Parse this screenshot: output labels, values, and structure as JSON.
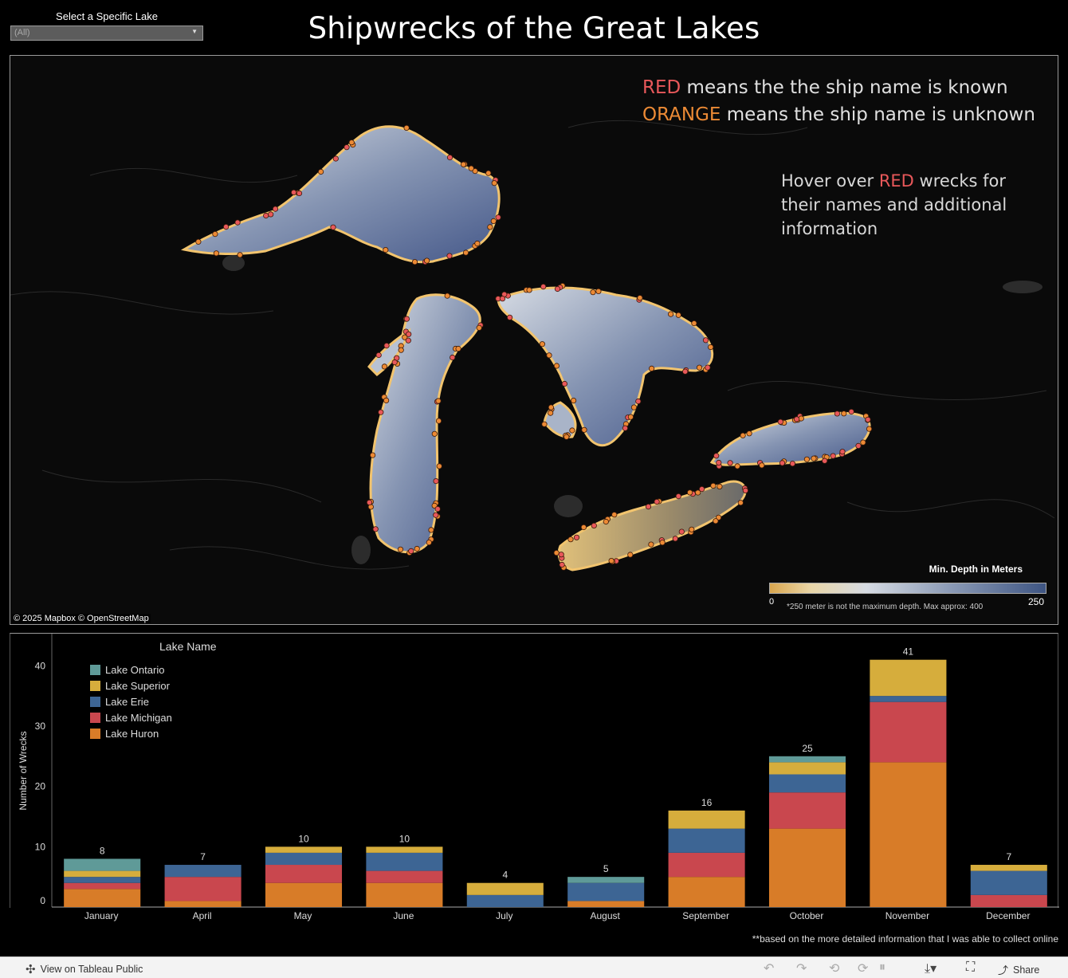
{
  "filter": {
    "label": "Select a Specific Lake",
    "value": "(All)"
  },
  "title": "Shipwrecks of the Great Lakes",
  "map": {
    "legend_red_keyword": "RED",
    "legend_red_text": " means the the ship name is known",
    "legend_orange_keyword": "ORANGE",
    "legend_orange_text": " means the ship name is unknown",
    "hover_prefix": "Hover over ",
    "hover_keyword": "RED",
    "hover_suffix": " wrecks for their names and additional information",
    "attribution": "© 2025 Mapbox  © OpenStreetMap",
    "depth_legend_title": "Min. Depth in Meters",
    "depth_min": "0",
    "depth_max": "250",
    "depth_note": "*250 meter is not the maximum depth. Max approx: 400",
    "colors": {
      "known": "#e8585a",
      "unknown": "#ec8a35",
      "shore": "#f2c46e",
      "deep": "#3e5583"
    }
  },
  "chart_data": {
    "type": "bar",
    "ylabel": "Number of Wrecks",
    "ylim": [
      0,
      44
    ],
    "yticks": [
      "0",
      "10",
      "20",
      "30",
      "40"
    ],
    "categories": [
      "January",
      "April",
      "May",
      "June",
      "July",
      "August",
      "September",
      "October",
      "November",
      "December"
    ],
    "totals": [
      "8",
      "7",
      "10",
      "10",
      "4",
      "5",
      "16",
      "25",
      "41",
      "7"
    ],
    "series": [
      {
        "name": "Lake Huron",
        "color": "#d87c28",
        "values": [
          3,
          1,
          4,
          4,
          0,
          1,
          5,
          13,
          24,
          0
        ]
      },
      {
        "name": "Lake Michigan",
        "color": "#c9474e",
        "values": [
          1,
          4,
          3,
          2,
          0,
          0,
          4,
          6,
          10,
          2
        ]
      },
      {
        "name": "Lake Erie",
        "color": "#3d6594",
        "values": [
          1,
          2,
          2,
          3,
          2,
          3,
          4,
          3,
          1,
          4
        ]
      },
      {
        "name": "Lake Superior",
        "color": "#d6ad3c",
        "values": [
          1,
          0,
          1,
          1,
          2,
          0,
          3,
          2,
          6,
          1
        ]
      },
      {
        "name": "Lake Ontario",
        "color": "#5f9a98",
        "values": [
          2,
          0,
          0,
          0,
          0,
          1,
          0,
          1,
          0,
          0
        ]
      }
    ],
    "legend_title": "Lake Name",
    "legend_order": [
      "Lake Ontario",
      "Lake Superior",
      "Lake Erie",
      "Lake Michigan",
      "Lake Huron"
    ],
    "legend_position": "top-left"
  },
  "footnote": "**based on the more detailed information that I was able to collect online",
  "toolbar": {
    "view_label": "View on Tableau Public",
    "share_label": "Share"
  }
}
